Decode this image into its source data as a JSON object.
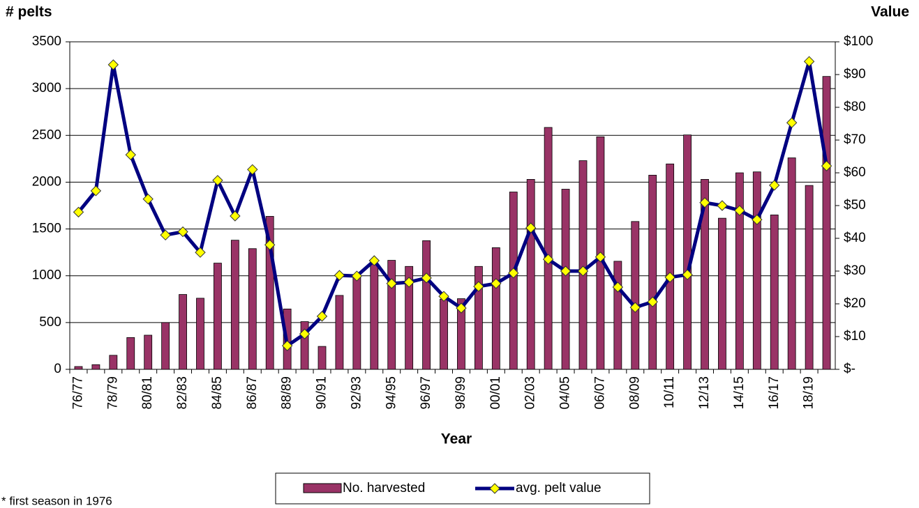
{
  "chart_data": {
    "type": "bar",
    "y_label": "# pelts",
    "y2_label": "Value",
    "x_label": "Year",
    "note": "* first season in 1976",
    "categories": [
      "76/77",
      null,
      "78/79",
      null,
      "80/81",
      null,
      "82/83",
      null,
      "84/85",
      null,
      "86/87",
      null,
      "88/89",
      null,
      "90/91",
      null,
      "92/93",
      null,
      "94/95",
      null,
      "96/97",
      null,
      "98/99",
      null,
      "00/01",
      null,
      "02/03",
      null,
      "04/05",
      null,
      "06/07",
      null,
      "08/09",
      null,
      "10/11",
      null,
      "12/13",
      null,
      "14/15",
      null,
      "16/17",
      null,
      "18/19",
      null
    ],
    "series": [
      {
        "name": "No. harvested",
        "type": "bar",
        "color": "#993366",
        "values": [
          30,
          50,
          150,
          340,
          365,
          500,
          800,
          760,
          1135,
          1380,
          1290,
          1635,
          645,
          510,
          245,
          790,
          990,
          1130,
          1165,
          1100,
          1375,
          750,
          755,
          1100,
          1300,
          1895,
          2030,
          2585,
          1925,
          2230,
          2485,
          1155,
          1580,
          2075,
          2195,
          2505,
          2030,
          1615,
          2100,
          2110,
          1650,
          2260,
          1965,
          3130
        ]
      },
      {
        "name": "avg. pelt value",
        "type": "line",
        "axis": "y2",
        "color": "#000080",
        "marker_color": "#ffff00",
        "values": [
          48,
          54.5,
          93,
          65.5,
          52,
          41,
          42,
          35.7,
          57.7,
          46.8,
          61,
          38,
          7.2,
          10.8,
          16.2,
          28.7,
          28.5,
          33.2,
          26.2,
          26.6,
          27.9,
          22.3,
          18.7,
          25.3,
          26.2,
          29.4,
          43.2,
          33.6,
          30,
          30,
          34.3,
          25.1,
          18.9,
          20.6,
          28.1,
          28.9,
          50.9,
          50,
          48.5,
          45.7,
          56.2,
          75.3,
          94,
          62.1
        ]
      }
    ],
    "ylim": [
      0,
      3500
    ],
    "yticks": [
      0,
      500,
      1000,
      1500,
      2000,
      2500,
      3000,
      3500
    ],
    "y2lim": [
      0,
      100
    ],
    "y2ticks": [
      {
        "value": 0,
        "label": "$-"
      },
      {
        "value": 10,
        "label": "$10"
      },
      {
        "value": 20,
        "label": "$20"
      },
      {
        "value": 30,
        "label": "$30"
      },
      {
        "value": 40,
        "label": "$40"
      },
      {
        "value": 50,
        "label": "$50"
      },
      {
        "value": 60,
        "label": "$60"
      },
      {
        "value": 70,
        "label": "$70"
      },
      {
        "value": 80,
        "label": "$80"
      },
      {
        "value": 90,
        "label": "$90"
      },
      {
        "value": 100,
        "label": "$100"
      }
    ],
    "grid": true,
    "legend": "bottom"
  }
}
